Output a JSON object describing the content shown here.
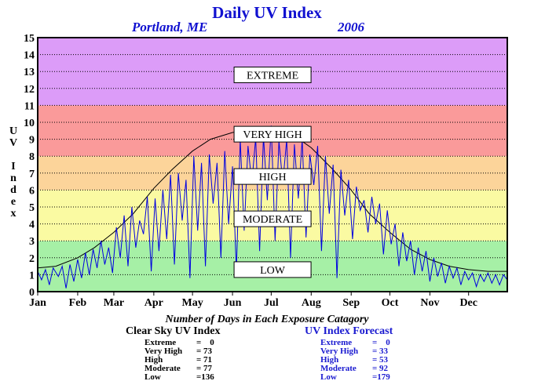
{
  "chart_data": {
    "type": "line",
    "title": "Daily UV Index",
    "location": "Portland, ME",
    "year": "2006",
    "ylabel": "UV Index",
    "xlabel": "",
    "ylim": [
      0,
      15
    ],
    "xlim": [
      1,
      365
    ],
    "yticks": [
      0,
      1,
      2,
      3,
      4,
      5,
      6,
      7,
      8,
      9,
      10,
      11,
      12,
      13,
      14,
      15
    ],
    "x_tick_labels": [
      {
        "label": "Jan",
        "day": 1
      },
      {
        "label": "Feb",
        "day": 32
      },
      {
        "label": "Mar",
        "day": 60
      },
      {
        "label": "Apr",
        "day": 91
      },
      {
        "label": "May",
        "day": 121
      },
      {
        "label": "Jun",
        "day": 152
      },
      {
        "label": "Jul",
        "day": 182
      },
      {
        "label": "Aug",
        "day": 213
      },
      {
        "label": "Sep",
        "day": 244
      },
      {
        "label": "Oct",
        "day": 274
      },
      {
        "label": "Nov",
        "day": 305
      },
      {
        "label": "Dec",
        "day": 335
      }
    ],
    "bands": [
      {
        "label": "LOW",
        "from": 0,
        "to": 3,
        "color": "#a6f0a6",
        "label_y": 1.3
      },
      {
        "label": "MODERATE",
        "from": 3,
        "to": 6,
        "color": "#fafaa2",
        "label_y": 4.3
      },
      {
        "label": "HIGH",
        "from": 6,
        "to": 8,
        "color": "#fcd49a",
        "label_y": 6.8
      },
      {
        "label": "VERY HIGH",
        "from": 8,
        "to": 11,
        "color": "#fa9a9a",
        "label_y": 9.3
      },
      {
        "label": "EXTREME",
        "from": 11,
        "to": 15,
        "color": "#dc9cf8",
        "label_y": 12.8
      }
    ],
    "grid": true,
    "series": [
      {
        "name": "Clear Sky UV Index",
        "color": "#000000",
        "points": [
          [
            1,
            1.4
          ],
          [
            15,
            1.5
          ],
          [
            32,
            2.0
          ],
          [
            45,
            2.6
          ],
          [
            60,
            3.5
          ],
          [
            75,
            4.6
          ],
          [
            91,
            6.1
          ],
          [
            105,
            7.2
          ],
          [
            121,
            8.3
          ],
          [
            135,
            9.0
          ],
          [
            152,
            9.4
          ],
          [
            172,
            9.6
          ],
          [
            182,
            9.5
          ],
          [
            200,
            9.2
          ],
          [
            213,
            8.5
          ],
          [
            230,
            7.2
          ],
          [
            244,
            6.0
          ],
          [
            258,
            4.6
          ],
          [
            274,
            3.5
          ],
          [
            290,
            2.5
          ],
          [
            305,
            1.9
          ],
          [
            320,
            1.5
          ],
          [
            335,
            1.3
          ],
          [
            350,
            1.2
          ],
          [
            365,
            1.2
          ]
        ]
      },
      {
        "name": "UV Index Forecast",
        "color": "#0000e0",
        "points": [
          [
            1,
            1.2
          ],
          [
            4,
            0.7
          ],
          [
            7,
            1.3
          ],
          [
            10,
            0.4
          ],
          [
            13,
            1.4
          ],
          [
            17,
            0.9
          ],
          [
            20,
            1.5
          ],
          [
            23,
            0.2
          ],
          [
            26,
            1.6
          ],
          [
            29,
            0.6
          ],
          [
            32,
            1.9
          ],
          [
            35,
            0.8
          ],
          [
            38,
            2.3
          ],
          [
            41,
            1.0
          ],
          [
            44,
            2.5
          ],
          [
            47,
            1.4
          ],
          [
            50,
            3.0
          ],
          [
            53,
            1.6
          ],
          [
            56,
            2.6
          ],
          [
            59,
            1.1
          ],
          [
            62,
            3.8
          ],
          [
            65,
            2.0
          ],
          [
            68,
            4.5
          ],
          [
            71,
            1.5
          ],
          [
            74,
            5.0
          ],
          [
            77,
            2.6
          ],
          [
            80,
            4.2
          ],
          [
            83,
            3.4
          ],
          [
            86,
            5.6
          ],
          [
            89,
            1.2
          ],
          [
            92,
            5.5
          ],
          [
            95,
            2.4
          ],
          [
            98,
            6.0
          ],
          [
            101,
            3.1
          ],
          [
            104,
            6.9
          ],
          [
            107,
            1.6
          ],
          [
            110,
            7.0
          ],
          [
            113,
            4.2
          ],
          [
            116,
            6.6
          ],
          [
            119,
            0.8
          ],
          [
            122,
            8.0
          ],
          [
            125,
            3.6
          ],
          [
            128,
            7.6
          ],
          [
            131,
            1.5
          ],
          [
            134,
            8.1
          ],
          [
            137,
            5.2
          ],
          [
            140,
            7.6
          ],
          [
            143,
            2.0
          ],
          [
            146,
            8.3
          ],
          [
            149,
            4.0
          ],
          [
            152,
            7.4
          ],
          [
            155,
            1.2
          ],
          [
            158,
            9.0
          ],
          [
            161,
            3.6
          ],
          [
            164,
            8.6
          ],
          [
            167,
            6.4
          ],
          [
            170,
            9.1
          ],
          [
            173,
            2.4
          ],
          [
            176,
            9.2
          ],
          [
            179,
            5.4
          ],
          [
            182,
            9.8
          ],
          [
            185,
            3.0
          ],
          [
            188,
            8.9
          ],
          [
            191,
            6.4
          ],
          [
            194,
            9.0
          ],
          [
            197,
            2.0
          ],
          [
            200,
            8.7
          ],
          [
            203,
            5.5
          ],
          [
            206,
            9.0
          ],
          [
            209,
            3.2
          ],
          [
            212,
            8.1
          ],
          [
            215,
            6.3
          ],
          [
            218,
            8.6
          ],
          [
            221,
            2.4
          ],
          [
            224,
            8.0
          ],
          [
            227,
            4.6
          ],
          [
            230,
            7.5
          ],
          [
            233,
            0.8
          ],
          [
            236,
            7.2
          ],
          [
            239,
            4.5
          ],
          [
            242,
            6.6
          ],
          [
            245,
            3.1
          ],
          [
            248,
            6.2
          ],
          [
            251,
            4.8
          ],
          [
            254,
            5.4
          ],
          [
            257,
            3.5
          ],
          [
            260,
            5.6
          ],
          [
            263,
            4.0
          ],
          [
            266,
            5.2
          ],
          [
            269,
            2.2
          ],
          [
            272,
            4.8
          ],
          [
            275,
            2.8
          ],
          [
            278,
            4.0
          ],
          [
            281,
            1.5
          ],
          [
            284,
            3.5
          ],
          [
            287,
            1.8
          ],
          [
            290,
            3.0
          ],
          [
            293,
            1.0
          ],
          [
            296,
            2.6
          ],
          [
            299,
            1.2
          ],
          [
            302,
            2.4
          ],
          [
            305,
            0.6
          ],
          [
            308,
            2.0
          ],
          [
            311,
            0.9
          ],
          [
            314,
            1.7
          ],
          [
            317,
            0.5
          ],
          [
            320,
            1.5
          ],
          [
            323,
            0.8
          ],
          [
            326,
            1.4
          ],
          [
            329,
            0.4
          ],
          [
            332,
            1.2
          ],
          [
            335,
            0.7
          ],
          [
            338,
            1.1
          ],
          [
            341,
            0.3
          ],
          [
            344,
            1.0
          ],
          [
            347,
            0.6
          ],
          [
            350,
            1.1
          ],
          [
            353,
            0.5
          ],
          [
            356,
            1.0
          ],
          [
            359,
            0.4
          ],
          [
            362,
            1.0
          ],
          [
            365,
            0.7
          ]
        ]
      }
    ]
  },
  "summary_caption": "Number of Days in Each Exposure Catagory",
  "clear_sky": {
    "heading": "Clear Sky UV Index",
    "rows": [
      {
        "name": "Extreme",
        "value": "=    0"
      },
      {
        "name": "Very High",
        "value": "= 73"
      },
      {
        "name": "High",
        "value": "= 71"
      },
      {
        "name": "Moderate",
        "value": "= 77"
      },
      {
        "name": "Low",
        "value": "=136"
      }
    ]
  },
  "forecast": {
    "heading": "UV Index Forecast",
    "rows": [
      {
        "name": "Extreme",
        "value": "=    0"
      },
      {
        "name": "Very High",
        "value": "= 33"
      },
      {
        "name": "High",
        "value": "= 53"
      },
      {
        "name": "Moderate",
        "value": "= 92"
      },
      {
        "name": "Low",
        "value": "=179"
      }
    ]
  }
}
